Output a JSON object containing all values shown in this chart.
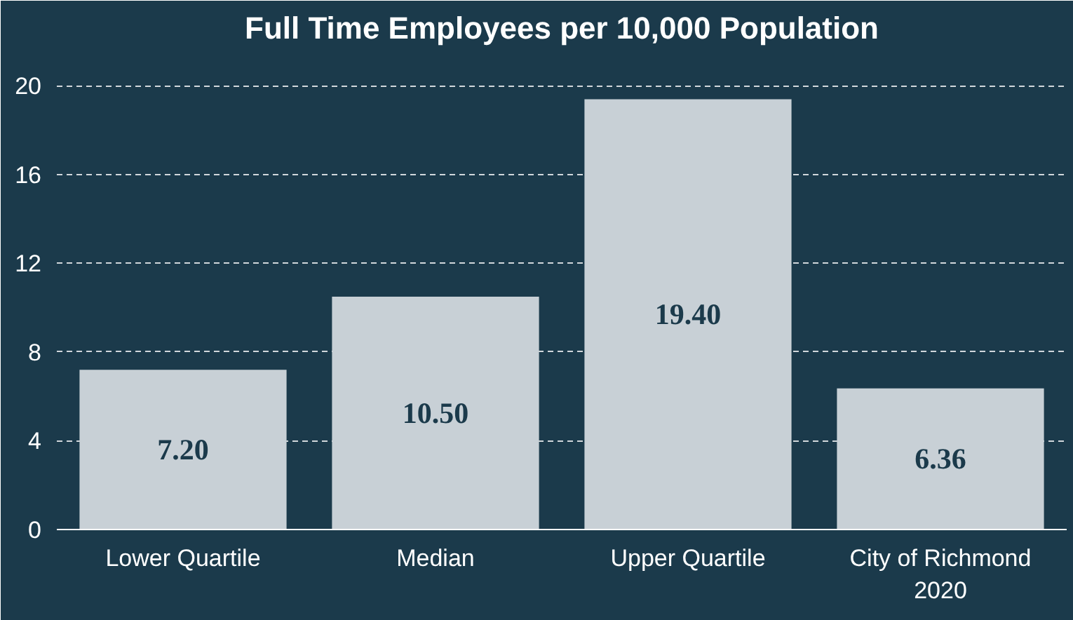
{
  "chart_data": {
    "type": "bar",
    "title": "Full Time Employees per 10,000 Population",
    "categories": [
      "Lower Quartile",
      "Median",
      "Upper Quartile",
      "City of Richmond\n2020"
    ],
    "values": [
      7.2,
      10.5,
      19.4,
      6.36
    ],
    "value_labels": [
      "7.20",
      "10.50",
      "19.40",
      "6.36"
    ],
    "color": "#c8d0d6",
    "ylim": [
      0,
      21.5
    ],
    "yticks": [
      0,
      4,
      8,
      12,
      16,
      20
    ],
    "grid": "y"
  }
}
